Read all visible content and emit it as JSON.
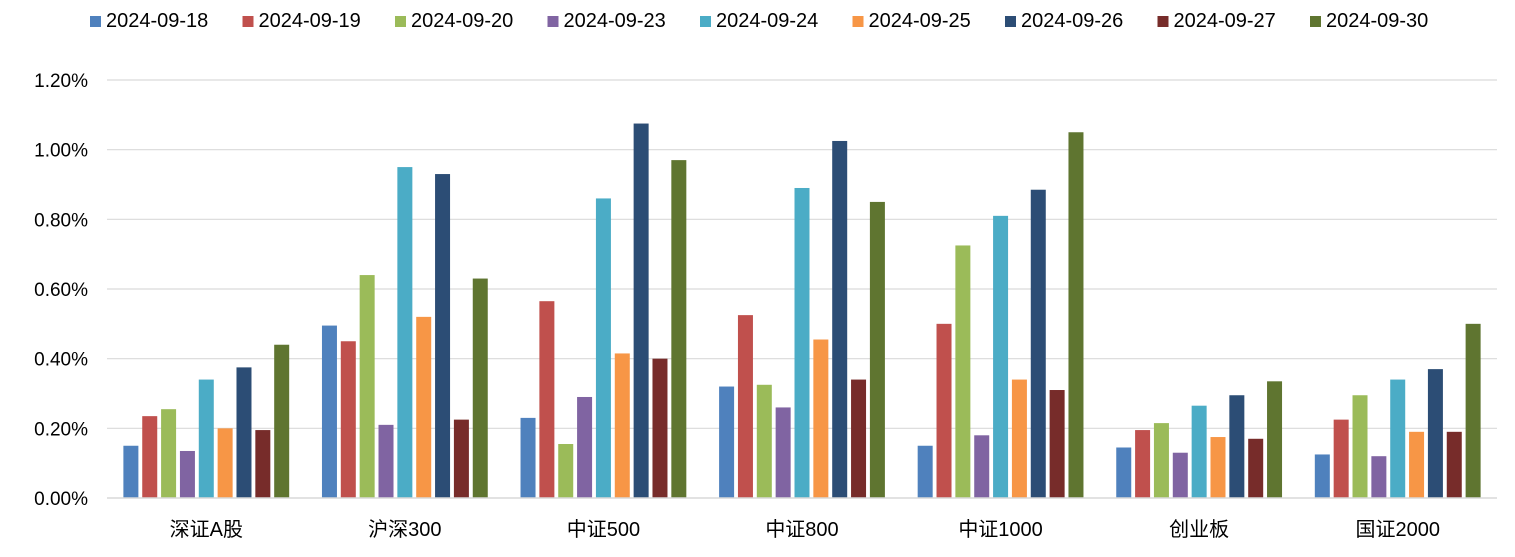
{
  "chart_data": {
    "type": "bar",
    "title": "",
    "xlabel": "",
    "ylabel": "",
    "ylim": [
      0,
      1.2
    ],
    "yticks": [
      0,
      0.2,
      0.4,
      0.6,
      0.8,
      1.0,
      1.2
    ],
    "ytick_labels": [
      "0.00%",
      "0.20%",
      "0.40%",
      "0.60%",
      "0.80%",
      "1.00%",
      "1.20%"
    ],
    "grid": true,
    "legend_position": "top",
    "categories": [
      "深证A股",
      "沪深300",
      "中证500",
      "中证800",
      "中证1000",
      "创业板",
      "国证2000"
    ],
    "series": [
      {
        "name": "2024-09-18",
        "color": "#4f81bd",
        "values": [
          0.15,
          0.495,
          0.23,
          0.32,
          0.15,
          0.145,
          0.125
        ]
      },
      {
        "name": "2024-09-19",
        "color": "#c0504d",
        "values": [
          0.235,
          0.45,
          0.565,
          0.525,
          0.5,
          0.195,
          0.225
        ]
      },
      {
        "name": "2024-09-20",
        "color": "#9bbb59",
        "values": [
          0.255,
          0.64,
          0.155,
          0.325,
          0.725,
          0.215,
          0.295
        ]
      },
      {
        "name": "2024-09-23",
        "color": "#8064a2",
        "values": [
          0.135,
          0.21,
          0.29,
          0.26,
          0.18,
          0.13,
          0.12
        ]
      },
      {
        "name": "2024-09-24",
        "color": "#4bacc6",
        "values": [
          0.34,
          0.95,
          0.86,
          0.89,
          0.81,
          0.265,
          0.34
        ]
      },
      {
        "name": "2024-09-25",
        "color": "#f79646",
        "values": [
          0.2,
          0.52,
          0.415,
          0.455,
          0.34,
          0.175,
          0.19
        ]
      },
      {
        "name": "2024-09-26",
        "color": "#2c4d75",
        "values": [
          0.375,
          0.93,
          1.075,
          1.025,
          0.885,
          0.295,
          0.37
        ]
      },
      {
        "name": "2024-09-27",
        "color": "#772c2a",
        "values": [
          0.195,
          0.225,
          0.4,
          0.34,
          0.31,
          0.17,
          0.19
        ]
      },
      {
        "name": "2024-09-30",
        "color": "#5f7530",
        "values": [
          0.44,
          0.63,
          0.97,
          0.85,
          1.05,
          0.335,
          0.5
        ]
      }
    ]
  }
}
